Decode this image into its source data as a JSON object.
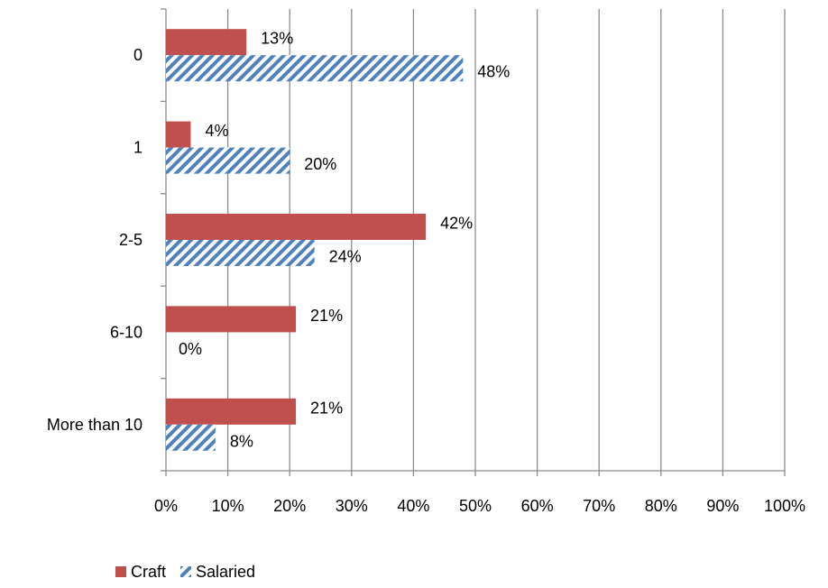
{
  "chart_data": {
    "type": "bar",
    "orientation": "horizontal",
    "categories": [
      "0",
      "1",
      "2-5",
      "6-10",
      "More than 10"
    ],
    "series": [
      {
        "name": "Craft",
        "values": [
          13,
          4,
          42,
          21,
          21
        ],
        "labels": [
          "13%",
          "4%",
          "42%",
          "21%",
          "21%"
        ],
        "color": "#C0504D",
        "fill": "solid"
      },
      {
        "name": "Salaried",
        "values": [
          48,
          20,
          24,
          0,
          8
        ],
        "labels": [
          "48%",
          "20%",
          "24%",
          "0%",
          "8%"
        ],
        "color": "#4F81BD",
        "fill": "diagonal-hatch"
      }
    ],
    "xlim": [
      0,
      100
    ],
    "x_ticks": [
      "0%",
      "10%",
      "20%",
      "30%",
      "40%",
      "50%",
      "60%",
      "70%",
      "80%",
      "90%",
      "100%"
    ],
    "grid": "vertical",
    "legend": "bottom"
  }
}
